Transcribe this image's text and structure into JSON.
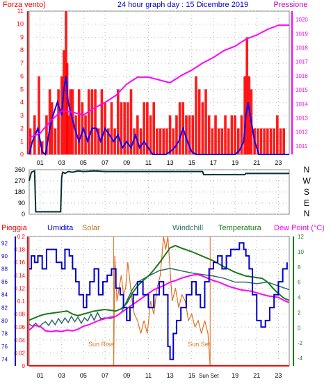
{
  "header": {
    "left_label": "Forza vento)",
    "title": "24 hour graph day : 15 Dicembre 2019",
    "right_label": "Pressione"
  },
  "bottom_header": {
    "labels": [
      "Pioggia",
      "Umidita",
      "Solar",
      "Windchill",
      "Temperatura",
      "Dew Point (°C)"
    ]
  },
  "annotations": {
    "sun_rise": "Sun Rise",
    "sun_set": "Sun Set"
  },
  "x_ticks": [
    "01",
    "03",
    "05",
    "07",
    "09",
    "11",
    "13",
    "15",
    "17",
    "19",
    "21",
    "23"
  ],
  "colors": {
    "wind": "#ff0000",
    "gust": "#0000ff",
    "pressure": "#ff00ff",
    "direction": "#003030",
    "humidity": "#0000cc",
    "solar": "#e07020",
    "windchill": "#2e6b60",
    "temperature": "#1a7a1a",
    "dewpoint": "#ff00ff",
    "rain": "#ff0000"
  },
  "chart_data": [
    {
      "type": "bar",
      "name": "wind",
      "title": "24 hour graph day : 15 Dicembre 2019",
      "x_range": [
        0,
        24
      ],
      "ylim": [
        0,
        11
      ],
      "y2lim": [
        1010.4,
        1020.6
      ],
      "y_ticks": [
        "0",
        "1",
        "2",
        "3",
        "4",
        "5",
        "6",
        "7",
        "8",
        "9",
        "10",
        "11"
      ],
      "y2_ticks": [
        "1011",
        "1012",
        "1013",
        "1014",
        "1015",
        "1016",
        "1017",
        "1018",
        "1019",
        "1020"
      ],
      "series": [
        {
          "name": "Forza vento",
          "style": "bars",
          "x": [
            0.1,
            0.5,
            0.9,
            1.2,
            1.6,
            1.9,
            2.1,
            2.4,
            2.7,
            3.0,
            3.2,
            3.4,
            3.5,
            3.6,
            3.8,
            4.0,
            4.3,
            4.6,
            4.9,
            5.2,
            5.5,
            5.8,
            6.1,
            6.4,
            6.7,
            7.0,
            7.3,
            7.6,
            7.9,
            8.2,
            8.5,
            8.8,
            9.1,
            9.4,
            9.7,
            10.0,
            10.3,
            10.6,
            10.9,
            11.2,
            11.5,
            11.8,
            12.1,
            12.4,
            12.7,
            13.0,
            13.3,
            13.6,
            13.9,
            14.2,
            14.5,
            14.8,
            15.1,
            15.4,
            15.7,
            16.0,
            16.3,
            16.6,
            16.9,
            17.2,
            17.5,
            17.8,
            18.1,
            18.4,
            18.7,
            19.0,
            19.3,
            19.6,
            19.9,
            20.1,
            20.3,
            20.5,
            20.8,
            21.1,
            21.4,
            21.7,
            22.0,
            22.3,
            22.6,
            22.9,
            23.2,
            23.5
          ],
          "values": [
            2,
            3,
            6,
            1,
            3,
            5,
            4,
            2,
            5,
            6,
            8,
            11,
            7,
            3,
            5,
            5,
            3,
            5,
            4,
            3,
            5,
            5,
            5,
            2,
            5,
            4,
            2,
            4,
            2,
            5,
            4,
            4,
            4,
            5,
            2,
            3,
            2,
            4,
            4,
            3,
            4,
            2,
            2,
            2,
            2,
            3,
            2,
            3,
            4,
            4,
            3,
            3,
            3,
            6,
            5,
            4,
            5,
            3,
            2,
            3,
            2,
            2,
            3,
            2,
            3,
            3,
            2,
            3,
            6,
            9,
            6,
            5,
            2,
            2,
            2,
            2,
            2,
            2,
            2,
            3,
            2,
            2
          ]
        },
        {
          "name": "gust",
          "style": "line",
          "x": [
            0,
            0.3,
            0.8,
            1.2,
            1.5,
            1.9,
            2.2,
            2.6,
            3.0,
            3.2,
            3.4,
            3.6,
            3.9,
            4.2,
            4.6,
            5.0,
            5.4,
            5.8,
            6.2,
            6.6,
            7.0,
            7.4,
            7.8,
            8.2,
            8.6,
            9.0,
            9.4,
            9.8,
            10.2,
            10.6,
            11.0,
            11.4,
            11.8,
            12.2,
            12.6,
            13.0,
            13.4,
            13.8,
            14.2,
            14.6,
            15.0,
            15.4,
            15.8,
            16.2,
            16.6,
            17.0,
            17.4,
            17.8,
            18.2,
            18.6,
            19.0,
            19.4,
            19.8,
            20.0,
            20.2,
            20.4,
            20.8,
            21.2,
            21.6,
            22.0,
            22.4,
            22.8,
            23.2,
            23.6,
            24.0
          ],
          "values": [
            0,
            1,
            2,
            0.2,
            0,
            2,
            3,
            4,
            3,
            5,
            6,
            4,
            3,
            2,
            1,
            2,
            1,
            2,
            2,
            1,
            2,
            1.5,
            1,
            1.5,
            0.5,
            1,
            0.5,
            1.5,
            0.5,
            1,
            0.5,
            0,
            0,
            0,
            0,
            0.2,
            0.5,
            1,
            2,
            1,
            0.2,
            0,
            0,
            0,
            0,
            0,
            0,
            0,
            0,
            0,
            0,
            0.3,
            1,
            3,
            4,
            3,
            1,
            0,
            0,
            0,
            0,
            0,
            0,
            0,
            0
          ]
        },
        {
          "name": "Pressione",
          "style": "line",
          "axis": "y2",
          "x": [
            0,
            1,
            2,
            3,
            4,
            5,
            6,
            7,
            8,
            9,
            10,
            11,
            12,
            13,
            14,
            15,
            16,
            17,
            18,
            19,
            20,
            21,
            22,
            23,
            24
          ],
          "values": [
            1011.6,
            1011.9,
            1012.8,
            1013.5,
            1013.4,
            1013.2,
            1013.7,
            1014.1,
            1014.6,
            1015.4,
            1015.9,
            1015.9,
            1015.7,
            1015.5,
            1016.0,
            1016.4,
            1016.9,
            1017.3,
            1017.8,
            1018.1,
            1018.6,
            1018.9,
            1019.3,
            1019.6,
            1019.6
          ]
        }
      ]
    },
    {
      "type": "line",
      "name": "wind-direction",
      "x_range": [
        0,
        24
      ],
      "ylim": [
        0,
        360
      ],
      "y_ticks": [
        "0",
        "90",
        "180",
        "270",
        "360"
      ],
      "y2_ticks": [
        "N",
        "W",
        "S",
        "E",
        "N"
      ],
      "series": [
        {
          "name": "direction",
          "x": [
            0,
            0.2,
            0.5,
            0.6,
            1.0,
            2.0,
            2.9,
            3.0,
            3.1,
            3.3,
            3.6,
            4.0,
            4.5,
            5.0,
            6.0,
            7.0,
            8.0,
            10.0,
            12.0,
            14.0,
            16.0,
            16.1,
            18.0,
            19.0,
            19.9,
            20.0,
            21.0,
            22.0,
            24.0
          ],
          "values": [
            270,
            340,
            350,
            20,
            20,
            20,
            20,
            300,
            340,
            330,
            345,
            340,
            350,
            345,
            350,
            345,
            345,
            345,
            345,
            345,
            345,
            320,
            320,
            320,
            320,
            330,
            330,
            330,
            330
          ]
        }
      ]
    },
    {
      "type": "line",
      "name": "weather",
      "x_range": [
        0,
        24
      ],
      "humidity_lim": [
        73,
        93
      ],
      "humidity_ticks": [
        "74",
        "76",
        "78",
        "80",
        "82",
        "84",
        "86",
        "88",
        "90",
        "92"
      ],
      "rain_lim": [
        0,
        0.2
      ],
      "rain_ticks": [
        "0",
        "0.02",
        "0.04",
        "0.06",
        "0.08",
        "0.1",
        "0.12",
        "0.14",
        "0.16",
        "0.18",
        "0.2"
      ],
      "temp_lim": [
        -5,
        12
      ],
      "temp_ticks": [
        "-4",
        "-2",
        "0",
        "2",
        "4",
        "6",
        "8",
        "10",
        "12"
      ],
      "sun_rise": 7.8,
      "sun_set": 16.7,
      "series": [
        {
          "name": "Umidita",
          "x": [
            0,
            0.2,
            0.5,
            0.8,
            1.2,
            1.6,
            2.0,
            2.5,
            3.0,
            3.3,
            3.7,
            4.0,
            4.3,
            4.6,
            5.0,
            5.3,
            5.6,
            6.0,
            6.4,
            6.8,
            7.2,
            7.6,
            8.0,
            8.4,
            8.7,
            9.0,
            9.3,
            9.6,
            10.0,
            10.5,
            11.0,
            11.5,
            12.0,
            12.4,
            12.8,
            13.0,
            13.3,
            13.6,
            14.0,
            14.5,
            15.0,
            15.4,
            15.8,
            16.2,
            16.6,
            17.0,
            17.4,
            17.8,
            18.2,
            18.6,
            19.0,
            19.4,
            19.8,
            20.0,
            20.3,
            20.6,
            21.0,
            21.4,
            21.8,
            22.2,
            22.6,
            23.0,
            23.4,
            23.8
          ],
          "values": [
            88,
            90,
            89,
            90,
            88,
            91,
            91,
            89,
            88,
            91,
            90,
            88,
            86,
            84,
            82,
            84,
            86,
            88,
            84,
            86,
            87,
            88,
            85,
            84,
            82,
            80,
            82,
            84,
            86,
            84,
            82,
            84,
            86,
            84,
            76,
            74,
            78,
            80,
            82,
            84,
            86,
            84,
            82,
            86,
            88,
            89,
            90,
            88,
            90,
            91,
            91,
            92,
            91,
            90,
            88,
            84,
            80,
            79,
            80,
            82,
            84,
            86,
            88,
            89
          ]
        },
        {
          "name": "Solar",
          "x": [
            0,
            7.5,
            7.8,
            7.9,
            8.1,
            8.3,
            8.5,
            8.7,
            8.9,
            9.1,
            9.3,
            9.5,
            9.7,
            10.0,
            10.3,
            10.6,
            10.9,
            11.2,
            11.5,
            11.8,
            12.1,
            12.4,
            12.6,
            12.8,
            13.0,
            13.2,
            13.5,
            13.8,
            14.1,
            14.4,
            14.7,
            15.0,
            15.3,
            15.6,
            15.9,
            16.2,
            16.5,
            16.7,
            24.0
          ],
          "values": [
            0,
            0,
            0,
            0.17,
            0.1,
            0.12,
            0.14,
            0.11,
            0.12,
            0.16,
            0.13,
            0.1,
            0.08,
            0.07,
            0.05,
            0.07,
            0.05,
            0.1,
            0.08,
            0.12,
            0.14,
            0.2,
            0.18,
            0.2,
            0.15,
            0.1,
            0.12,
            0.09,
            0.11,
            0.1,
            0.07,
            0.08,
            0.06,
            0.07,
            0.05,
            0.07,
            0.05,
            0,
            0
          ]
        },
        {
          "name": "Windchill",
          "x": [
            0,
            0.3,
            0.6,
            0.9,
            1.2,
            1.5,
            1.8,
            2.1,
            2.4,
            2.7,
            3.0,
            3.3,
            3.6,
            3.9,
            4.2,
            4.5,
            4.8,
            5.1,
            5.4,
            5.7,
            6.0,
            6.3,
            6.6,
            7.0,
            7.5,
            8.0,
            8.5,
            9.0,
            9.5,
            10.0,
            11.0,
            12.0,
            13.0,
            14.0,
            15.0,
            16.0,
            17.0,
            18.0,
            19.0,
            20.0,
            21.0,
            22.0,
            23.0,
            24.0
          ],
          "values": [
            0.5,
            0.2,
            0.6,
            0.1,
            0.5,
            0.8,
            0.3,
            1.0,
            0.4,
            1.2,
            0.6,
            1.3,
            0.7,
            1.5,
            0.8,
            1.4,
            0.6,
            1.3,
            0.9,
            1.8,
            1.0,
            2.0,
            1.2,
            1.3,
            1.2,
            1.5,
            2.0,
            3.5,
            5.0,
            6.0,
            6.8,
            7.5,
            7.8,
            7.5,
            7.2,
            7.0,
            6.8,
            6.5,
            6.0,
            6.0,
            5.8,
            6.0,
            5.5,
            5.0
          ]
        },
        {
          "name": "Temperatura",
          "x": [
            0,
            0.5,
            1.0,
            1.5,
            2.0,
            2.5,
            3.0,
            3.5,
            4.0,
            4.5,
            5.0,
            5.5,
            6.0,
            6.5,
            7.0,
            7.5,
            8.0,
            8.5,
            9.0,
            9.5,
            10.0,
            10.5,
            11.0,
            11.5,
            12.0,
            12.5,
            13.0,
            13.5,
            14.0,
            15.0,
            16.0,
            17.0,
            18.0,
            19.0,
            20.0,
            21.0,
            21.5,
            22.0,
            22.5,
            23.0,
            23.5,
            24.0
          ],
          "values": [
            1.0,
            1.3,
            1.6,
            1.8,
            1.9,
            2.0,
            2.1,
            2.2,
            1.8,
            1.6,
            1.8,
            2.0,
            2.2,
            2.3,
            2.4,
            2.3,
            2.2,
            2.5,
            3.2,
            4.5,
            5.5,
            6.2,
            6.8,
            7.6,
            8.5,
            9.5,
            10.5,
            10.8,
            10.5,
            10.0,
            9.4,
            8.8,
            8.0,
            7.3,
            6.8,
            6.6,
            6.5,
            6.0,
            5.2,
            4.5,
            3.9,
            3.6
          ]
        },
        {
          "name": "Dew Point",
          "x": [
            0,
            0.5,
            1.0,
            1.5,
            2.0,
            2.5,
            3.0,
            3.5,
            4.0,
            4.5,
            5.0,
            5.5,
            6.0,
            6.5,
            7.0,
            7.5,
            8.0,
            8.5,
            9.0,
            9.5,
            10.0,
            10.5,
            11.0,
            11.5,
            12.0,
            12.5,
            13.0,
            13.5,
            14.0,
            14.5,
            15.0,
            15.5,
            16.0,
            16.5,
            17.0,
            17.5,
            18.0,
            18.5,
            19.0,
            19.5,
            20.0,
            20.5,
            21.0,
            21.5,
            22.0,
            22.5,
            23.0,
            23.5,
            24.0
          ],
          "values": [
            -0.3,
            0.3,
            0.2,
            -0.4,
            -0.5,
            -0.4,
            -0.5,
            -0.3,
            -0.4,
            -0.2,
            0.2,
            0.4,
            0.7,
            1.0,
            1.2,
            1.4,
            1.5,
            2.0,
            2.5,
            3.0,
            3.5,
            4.0,
            4.5,
            5.0,
            5.3,
            5.6,
            6.0,
            6.2,
            6.5,
            6.7,
            6.9,
            7.0,
            6.8,
            6.5,
            6.2,
            6.0,
            5.7,
            5.4,
            5.2,
            5.0,
            4.9,
            4.8,
            4.6,
            4.4,
            4.2,
            4.1,
            4.0,
            3.6,
            3.3
          ]
        },
        {
          "name": "Pioggia",
          "x": [
            0,
            24
          ],
          "values": [
            0,
            0
          ]
        }
      ]
    }
  ]
}
